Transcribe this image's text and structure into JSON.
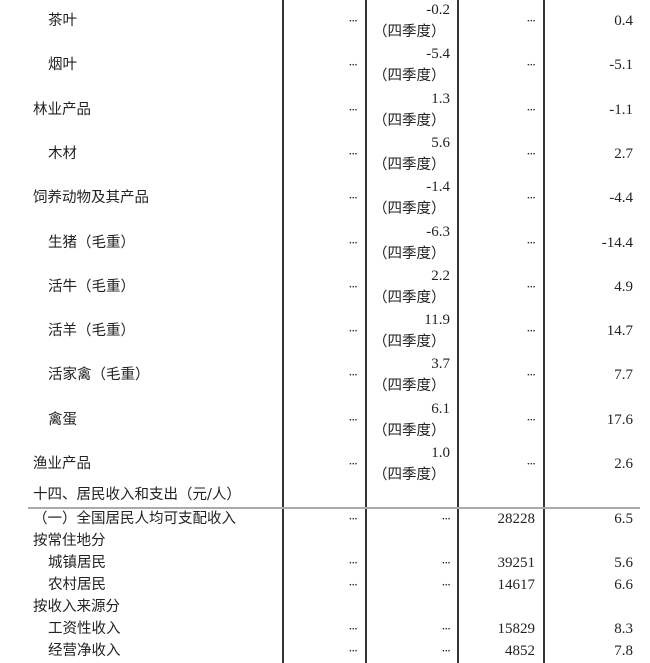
{
  "quarter_note": "（四季度）",
  "ellipsis": "···",
  "section_a": [
    {
      "label": "茶叶",
      "indent": true,
      "q": "-0.2",
      "v": "0.4"
    },
    {
      "label": "烟叶",
      "indent": true,
      "q": "-5.4",
      "v": "-5.1"
    },
    {
      "label": "林业产品",
      "indent": false,
      "q": "1.3",
      "v": "-1.1"
    },
    {
      "label": "木材",
      "indent": true,
      "q": "5.6",
      "v": "2.7"
    },
    {
      "label": "饲养动物及其产品",
      "indent": false,
      "q": "-1.4",
      "v": "-4.4"
    },
    {
      "label": "生猪（毛重）",
      "indent": true,
      "q": "-6.3",
      "v": "-14.4"
    },
    {
      "label": "活牛（毛重）",
      "indent": true,
      "q": "2.2",
      "v": "4.9"
    },
    {
      "label": "活羊（毛重）",
      "indent": true,
      "q": "11.9",
      "v": "14.7"
    },
    {
      "label": "活家禽（毛重）",
      "indent": true,
      "q": "3.7",
      "v": "7.7"
    },
    {
      "label": "禽蛋",
      "indent": true,
      "q": "6.1",
      "v": "17.6"
    },
    {
      "label": "渔业产品",
      "indent": false,
      "q": "1.0",
      "v": "2.6"
    }
  ],
  "section_heading": "十四、居民收入和支出（元/人）",
  "section_b": [
    {
      "label": "（一）全国居民人均可支配收入",
      "indent": 0,
      "amount": "28228",
      "v": "6.5",
      "dots": true
    },
    {
      "label": "按常住地分",
      "indent": 0,
      "amount": "",
      "v": "",
      "dots": false
    },
    {
      "label": "城镇居民",
      "indent": 1,
      "amount": "39251",
      "v": "5.6",
      "dots": true
    },
    {
      "label": "农村居民",
      "indent": 1,
      "amount": "14617",
      "v": "6.6",
      "dots": true
    },
    {
      "label": "按收入来源分",
      "indent": 0,
      "amount": "",
      "v": "",
      "dots": false
    },
    {
      "label": "工资性收入",
      "indent": 1,
      "amount": "15829",
      "v": "8.3",
      "dots": true
    },
    {
      "label": "经营净收入",
      "indent": 1,
      "amount": "4852",
      "v": "7.8",
      "dots": true
    }
  ]
}
